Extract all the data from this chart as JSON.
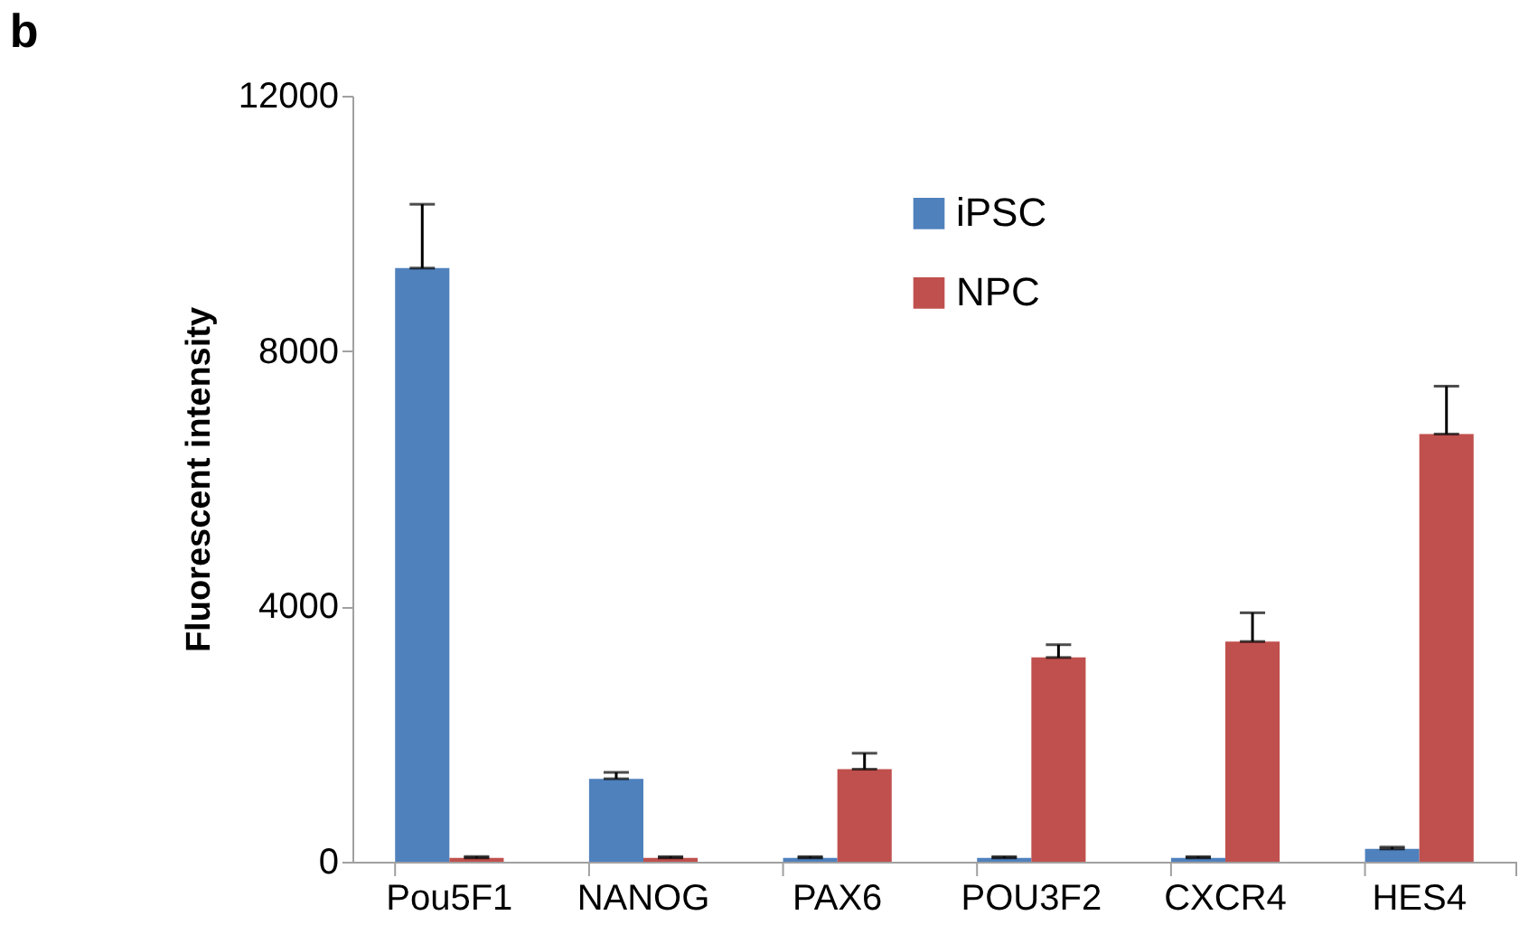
{
  "chart_data": {
    "type": "bar",
    "title": "b",
    "ylabel": "Fluorescent intensity",
    "categories": [
      "Pou5F1",
      "NANOG",
      "PAX6",
      "POU3F2",
      "CXCR4",
      "HES4"
    ],
    "series": [
      {
        "name": "iPSC",
        "color": "#4f81bd",
        "values": [
          9300,
          1300,
          60,
          60,
          60,
          200
        ],
        "errors": [
          [
            9300,
            10300
          ],
          [
            1300,
            1400
          ],
          [
            60,
            80
          ],
          [
            60,
            80
          ],
          [
            60,
            80
          ],
          [
            200,
            230
          ]
        ]
      },
      {
        "name": "NPC",
        "color": "#c0504d",
        "values": [
          60,
          60,
          1450,
          3200,
          3450,
          6700
        ],
        "errors": [
          [
            60,
            80
          ],
          [
            60,
            80
          ],
          [
            1450,
            1700
          ],
          [
            3200,
            3400
          ],
          [
            3450,
            3900
          ],
          [
            6700,
            7450
          ]
        ]
      }
    ],
    "ylim": [
      0,
      12000
    ],
    "yticks": [
      0,
      4000,
      8000,
      12000
    ],
    "grid": false,
    "legend": "top"
  }
}
